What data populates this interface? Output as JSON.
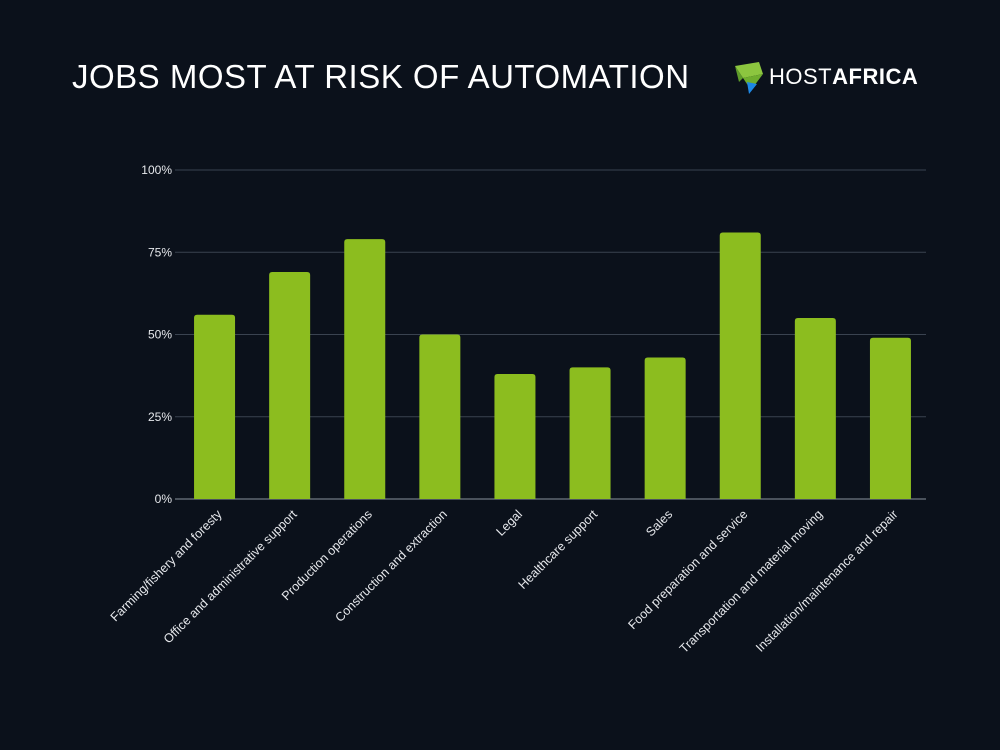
{
  "title": "JOBS MOST AT RISK OF AUTOMATION",
  "logo": {
    "part1": "HOST",
    "part2": "AFRICA"
  },
  "colors": {
    "background": "#0b111b",
    "bar": "#8cbd1f",
    "grid": "#3a4350",
    "logo_green": "#8cc63f",
    "logo_blue": "#1e88e5"
  },
  "chart_data": {
    "type": "bar",
    "categories": [
      "Farming/fishery and foresty",
      "Office and administrative support",
      "Production operations",
      "Construction and extraction",
      "Legal",
      "Healthcare support",
      "Sales",
      "Food preparation and service",
      "Transportation and material moving",
      "Installation/maintenance and repair"
    ],
    "values": [
      56,
      69,
      79,
      50,
      38,
      40,
      43,
      81,
      55,
      49
    ],
    "yticks": [
      "0%",
      "25%",
      "50%",
      "75%",
      "100%"
    ],
    "ylim": [
      0,
      100
    ],
    "grid": true
  }
}
